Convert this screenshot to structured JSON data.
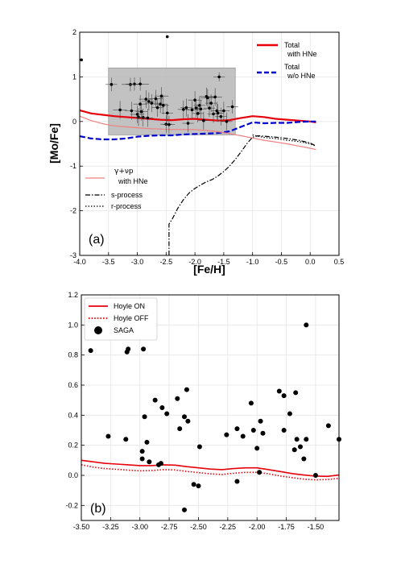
{
  "chart_data": [
    {
      "type": "line",
      "panel_label": "(a)",
      "xlabel": "[Fe/H]",
      "ylabel": "[Mo/Fe]",
      "xlim": [
        -4.0,
        0.5
      ],
      "ylim": [
        -3,
        2
      ],
      "xticks": [
        "-4.0",
        "-3.5",
        "-3.0",
        "-2.5",
        "-2.0",
        "-1.5",
        "-1.0",
        "-0.5",
        "0.0",
        "0.5"
      ],
      "xtick_values": [
        -4.0,
        -3.5,
        -3.0,
        -2.5,
        -2.0,
        -1.5,
        -1.0,
        -0.5,
        0.0,
        0.5
      ],
      "yticks": [
        "-3",
        "-2",
        "-1",
        "0",
        "1",
        "2"
      ],
      "ytick_values": [
        -3,
        -2,
        -1,
        0,
        1,
        2
      ],
      "grid": true,
      "shaded_region": {
        "x": [
          -3.5,
          -1.3
        ],
        "y": [
          -0.3,
          1.2
        ],
        "color": "#bbbbbb"
      },
      "legend_top_right": [
        {
          "label_line1": "Total",
          "label_line2": "with HNe",
          "color": "#e8000b",
          "style": "solid"
        },
        {
          "label_line1": "Total",
          "label_line2": "w/o HNe",
          "color": "#0000cc",
          "style": "dashed"
        }
      ],
      "legend_left": [
        {
          "label_line1": "γ+νp",
          "label_line2": "with HNe",
          "color": "#f08080",
          "style": "solid"
        },
        {
          "label_line1": "s-process",
          "label_line2": "",
          "color": "#000000",
          "style": "dashdot"
        },
        {
          "label_line1": "r-process",
          "label_line2": "",
          "color": "#000000",
          "style": "dotted"
        }
      ],
      "series": [
        {
          "key": "total_hne",
          "color": "#e8000b",
          "style": "solid",
          "width": 2.2,
          "x": [
            -4.0,
            -3.8,
            -3.6,
            -3.4,
            -3.2,
            -3.0,
            -2.8,
            -2.6,
            -2.4,
            -2.2,
            -2.0,
            -1.8,
            -1.6,
            -1.4,
            -1.2,
            -1.0,
            -0.8,
            -0.6,
            -0.4,
            -0.2,
            0.0,
            0.1
          ],
          "y": [
            0.25,
            0.18,
            0.15,
            0.12,
            0.1,
            0.08,
            0.06,
            0.04,
            0.03,
            0.05,
            0.06,
            0.04,
            0.02,
            0.03,
            0.08,
            0.12,
            0.1,
            0.06,
            0.04,
            0.02,
            0.0,
            -0.02
          ]
        },
        {
          "key": "total_nohne",
          "color": "#0000cc",
          "style": "dashed",
          "width": 2.2,
          "x": [
            -4.0,
            -3.8,
            -3.6,
            -3.4,
            -3.2,
            -3.0,
            -2.8,
            -2.6,
            -2.4,
            -2.2,
            -2.0,
            -1.8,
            -1.6,
            -1.4,
            -1.2,
            -1.0,
            -0.8,
            -0.6,
            -0.4,
            -0.2,
            0.0,
            0.1
          ],
          "y": [
            -0.33,
            -0.38,
            -0.4,
            -0.4,
            -0.38,
            -0.34,
            -0.32,
            -0.31,
            -0.31,
            -0.29,
            -0.28,
            -0.27,
            -0.26,
            -0.22,
            -0.12,
            -0.02,
            -0.04,
            -0.03,
            -0.03,
            -0.01,
            0.0,
            0.0
          ]
        },
        {
          "key": "gamma_nup",
          "color": "#f08080",
          "style": "solid",
          "width": 1.2,
          "x": [
            -4.0,
            -3.8,
            -3.6,
            -3.4,
            -3.2,
            -3.0,
            -2.8,
            -2.6,
            -2.4,
            -2.2,
            -2.0,
            -1.8,
            -1.6,
            -1.4,
            -1.2,
            -1.0,
            -0.8,
            -0.6,
            -0.4,
            -0.2,
            0.0,
            0.1
          ],
          "y": [
            0.12,
            0.02,
            -0.05,
            -0.1,
            -0.12,
            -0.14,
            -0.16,
            -0.17,
            -0.18,
            -0.18,
            -0.18,
            -0.2,
            -0.23,
            -0.27,
            -0.32,
            -0.37,
            -0.42,
            -0.46,
            -0.5,
            -0.55,
            -0.6,
            -0.63
          ]
        },
        {
          "key": "s_process",
          "color": "#000000",
          "style": "dashdot",
          "width": 1.2,
          "x": [
            -2.45,
            -2.45,
            -2.4,
            -2.3,
            -2.2,
            -2.1,
            -2.0,
            -1.9,
            -1.8,
            -1.7,
            -1.6,
            -1.5,
            -1.4,
            -1.3,
            -1.2,
            -1.1,
            -1.0,
            -0.9,
            -0.8,
            -0.6,
            -0.4,
            -0.2,
            0.0,
            0.1
          ],
          "y": [
            -3.0,
            -2.3,
            -2.2,
            -1.95,
            -1.75,
            -1.6,
            -1.5,
            -1.42,
            -1.35,
            -1.3,
            -1.22,
            -1.12,
            -1.0,
            -0.85,
            -0.68,
            -0.5,
            -0.35,
            -0.32,
            -0.33,
            -0.35,
            -0.38,
            -0.42,
            -0.48,
            -0.55
          ]
        },
        {
          "key": "r_process",
          "color": "#000000",
          "style": "dotted",
          "width": 1.2,
          "x": [
            -1.0,
            -0.9,
            -0.8,
            -0.6,
            -0.4,
            -0.2,
            0.0,
            0.1
          ],
          "y": [
            -0.3,
            -0.33,
            -0.36,
            -0.38,
            -0.42,
            -0.45,
            -0.5,
            -0.55
          ]
        }
      ],
      "points": [
        {
          "x": -3.97,
          "y": 1.38,
          "xe": 0,
          "ye": 0
        },
        {
          "x": -2.48,
          "y": 1.9,
          "xe": 0,
          "ye": 0
        },
        {
          "x": -3.45,
          "y": 0.83,
          "xe": 0.1,
          "ye": 0.15
        },
        {
          "x": -3.12,
          "y": 0.83,
          "xe": 0.15,
          "ye": 0.15
        },
        {
          "x": -3.05,
          "y": 0.84,
          "xe": 0.15,
          "ye": 0.15
        },
        {
          "x": -2.95,
          "y": 0.84,
          "xe": 0.15,
          "ye": 0.15
        },
        {
          "x": -3.3,
          "y": 0.26,
          "xe": 0.12,
          "ye": 0.2
        },
        {
          "x": -3.1,
          "y": 0.24,
          "xe": 0.12,
          "ye": 0.2
        },
        {
          "x": -3.0,
          "y": 0.16,
          "xe": 0.12,
          "ye": 0.2
        },
        {
          "x": -2.98,
          "y": 0.1,
          "xe": 0.1,
          "ye": 0.2
        },
        {
          "x": -2.95,
          "y": 0.39,
          "xe": 0.12,
          "ye": 0.2
        },
        {
          "x": -2.93,
          "y": 0.22,
          "xe": 0.1,
          "ye": 0.2
        },
        {
          "x": -2.9,
          "y": 0.09,
          "xe": 0.1,
          "ye": 0.2
        },
        {
          "x": -2.85,
          "y": 0.5,
          "xe": 0.12,
          "ye": 0.2
        },
        {
          "x": -2.82,
          "y": 0.08,
          "xe": 0.1,
          "ye": 0.2
        },
        {
          "x": -2.8,
          "y": 0.45,
          "xe": 0.12,
          "ye": 0.2
        },
        {
          "x": -2.75,
          "y": 0.41,
          "xe": 0.12,
          "ye": 0.2
        },
        {
          "x": -2.68,
          "y": 0.51,
          "xe": 0.12,
          "ye": 0.2
        },
        {
          "x": -2.65,
          "y": 0.31,
          "xe": 0.1,
          "ye": 0.2
        },
        {
          "x": -2.6,
          "y": 0.39,
          "xe": 0.12,
          "ye": 0.2
        },
        {
          "x": -2.58,
          "y": 0.57,
          "xe": 0.12,
          "ye": 0.2
        },
        {
          "x": -2.55,
          "y": 0.36,
          "xe": 0.1,
          "ye": 0.2
        },
        {
          "x": -2.5,
          "y": -0.06,
          "xe": 0.1,
          "ye": 0.2
        },
        {
          "x": -2.48,
          "y": 0.19,
          "xe": 0.1,
          "ye": 0.2
        },
        {
          "x": -2.45,
          "y": -0.07,
          "xe": 0.1,
          "ye": 0.2
        },
        {
          "x": -2.2,
          "y": 0.27,
          "xe": 0.1,
          "ye": 0.2
        },
        {
          "x": -2.15,
          "y": 0.31,
          "xe": 0.1,
          "ye": 0.2
        },
        {
          "x": -2.12,
          "y": -0.04,
          "xe": 0.1,
          "ye": 0.2
        },
        {
          "x": -2.05,
          "y": 0.26,
          "xe": 0.1,
          "ye": 0.2
        },
        {
          "x": -2.0,
          "y": 0.48,
          "xe": 0.12,
          "ye": 0.2
        },
        {
          "x": -1.98,
          "y": 0.3,
          "xe": 0.1,
          "ye": 0.2
        },
        {
          "x": -1.95,
          "y": 0.18,
          "xe": 0.1,
          "ye": 0.2
        },
        {
          "x": -1.92,
          "y": 0.36,
          "xe": 0.1,
          "ye": 0.2
        },
        {
          "x": -1.9,
          "y": 0.28,
          "xe": 0.1,
          "ye": 0.2
        },
        {
          "x": -1.85,
          "y": 0.02,
          "xe": 0.1,
          "ye": 0.2
        },
        {
          "x": -1.8,
          "y": 0.56,
          "xe": 0.12,
          "ye": 0.2
        },
        {
          "x": -1.78,
          "y": 0.53,
          "xe": 0.12,
          "ye": 0.2
        },
        {
          "x": -1.75,
          "y": 0.3,
          "xe": 0.1,
          "ye": 0.2
        },
        {
          "x": -1.72,
          "y": 0.41,
          "xe": 0.1,
          "ye": 0.2
        },
        {
          "x": -1.68,
          "y": 0.17,
          "xe": 0.1,
          "ye": 0.2
        },
        {
          "x": -1.65,
          "y": 0.55,
          "xe": 0.12,
          "ye": 0.2
        },
        {
          "x": -1.62,
          "y": 0.24,
          "xe": 0.1,
          "ye": 0.2
        },
        {
          "x": -1.6,
          "y": 0.19,
          "xe": 0.1,
          "ye": 0.2
        },
        {
          "x": -1.58,
          "y": 1.0,
          "xe": 0.1,
          "ye": 0.1
        },
        {
          "x": -1.55,
          "y": 0.11,
          "xe": 0.1,
          "ye": 0.2
        },
        {
          "x": -1.5,
          "y": 0.24,
          "xe": 0.1,
          "ye": 0.2
        },
        {
          "x": -1.45,
          "y": 0.0,
          "xe": 0.1,
          "ye": 0.2
        },
        {
          "x": -1.35,
          "y": 0.33,
          "xe": 0.1,
          "ye": 0.15
        }
      ]
    },
    {
      "type": "scatter",
      "panel_label": "(b)",
      "xlabel": "",
      "ylabel": "",
      "xlim": [
        -3.5,
        -1.3
      ],
      "ylim": [
        -0.3,
        1.2
      ],
      "xticks": [
        "-3.50",
        "-3.25",
        "-3.00",
        "-2.75",
        "-2.50",
        "-2.25",
        "-2.00",
        "-1.75",
        "-1.50"
      ],
      "xtick_values": [
        -3.5,
        -3.25,
        -3.0,
        -2.75,
        -2.5,
        -2.25,
        -2.0,
        -1.75,
        -1.5
      ],
      "yticks": [
        "-0.2",
        "0.0",
        "0.2",
        "0.4",
        "0.6",
        "0.8",
        "1.0",
        "1.2"
      ],
      "ytick_values": [
        -0.2,
        0.0,
        0.2,
        0.4,
        0.6,
        0.8,
        1.0,
        1.2
      ],
      "grid": true,
      "legend_placement": "top-left",
      "legend": [
        {
          "label": "Hoyle ON",
          "color": "#e8000b",
          "style": "solid"
        },
        {
          "label": "Hoyle OFF",
          "color": "#e8000b",
          "style": "dotted"
        },
        {
          "label": "SAGA",
          "color": "#000000",
          "style": "marker"
        }
      ],
      "series": [
        {
          "key": "hoyle_on",
          "color": "#e8000b",
          "style": "solid",
          "width": 1.6,
          "x": [
            -3.5,
            -3.4,
            -3.3,
            -3.2,
            -3.1,
            -3.0,
            -2.9,
            -2.8,
            -2.7,
            -2.6,
            -2.5,
            -2.4,
            -2.3,
            -2.2,
            -2.1,
            -2.0,
            -1.9,
            -1.8,
            -1.7,
            -1.6,
            -1.5,
            -1.4,
            -1.3
          ],
          "y": [
            0.1,
            0.09,
            0.08,
            0.075,
            0.07,
            0.065,
            0.065,
            0.07,
            0.068,
            0.058,
            0.05,
            0.042,
            0.038,
            0.045,
            0.05,
            0.05,
            0.038,
            0.025,
            0.012,
            0.002,
            -0.005,
            -0.007,
            0.002
          ]
        },
        {
          "key": "hoyle_off",
          "color": "#e8000b",
          "style": "dotted",
          "width": 1.6,
          "x": [
            -3.5,
            -3.4,
            -3.3,
            -3.2,
            -3.1,
            -3.0,
            -2.9,
            -2.8,
            -2.7,
            -2.6,
            -2.5,
            -2.4,
            -2.3,
            -2.2,
            -2.1,
            -2.0,
            -1.9,
            -1.8,
            -1.7,
            -1.6,
            -1.5,
            -1.4,
            -1.3
          ],
          "y": [
            0.07,
            0.055,
            0.045,
            0.04,
            0.035,
            0.03,
            0.032,
            0.038,
            0.036,
            0.026,
            0.018,
            0.01,
            0.006,
            0.014,
            0.02,
            0.02,
            0.01,
            -0.005,
            -0.015,
            -0.025,
            -0.03,
            -0.028,
            -0.02
          ]
        }
      ],
      "points": [
        {
          "x": -3.42,
          "y": 0.83
        },
        {
          "x": -3.11,
          "y": 0.82
        },
        {
          "x": -3.1,
          "y": 0.84
        },
        {
          "x": -2.97,
          "y": 0.84
        },
        {
          "x": -3.27,
          "y": 0.26
        },
        {
          "x": -3.12,
          "y": 0.24
        },
        {
          "x": -2.98,
          "y": 0.16
        },
        {
          "x": -2.98,
          "y": 0.11
        },
        {
          "x": -2.96,
          "y": 0.39
        },
        {
          "x": -2.94,
          "y": 0.22
        },
        {
          "x": -2.92,
          "y": 0.09
        },
        {
          "x": -2.87,
          "y": 0.5
        },
        {
          "x": -2.84,
          "y": 0.07
        },
        {
          "x": -2.82,
          "y": 0.08
        },
        {
          "x": -2.81,
          "y": 0.45
        },
        {
          "x": -2.77,
          "y": 0.41
        },
        {
          "x": -2.68,
          "y": 0.51
        },
        {
          "x": -2.66,
          "y": 0.31
        },
        {
          "x": -2.62,
          "y": 0.39
        },
        {
          "x": -2.6,
          "y": 0.57
        },
        {
          "x": -2.59,
          "y": 0.36
        },
        {
          "x": -2.62,
          "y": -0.23
        },
        {
          "x": -2.54,
          "y": -0.06
        },
        {
          "x": -2.5,
          "y": -0.07
        },
        {
          "x": -2.49,
          "y": 0.19
        },
        {
          "x": -2.26,
          "y": 0.27
        },
        {
          "x": -2.17,
          "y": 0.31
        },
        {
          "x": -2.17,
          "y": -0.04
        },
        {
          "x": -2.12,
          "y": 0.26
        },
        {
          "x": -2.05,
          "y": 0.48
        },
        {
          "x": -2.03,
          "y": 0.3
        },
        {
          "x": -2.0,
          "y": 0.18
        },
        {
          "x": -1.98,
          "y": 0.02
        },
        {
          "x": -1.97,
          "y": 0.36
        },
        {
          "x": -1.95,
          "y": 0.28
        },
        {
          "x": -1.81,
          "y": 0.56
        },
        {
          "x": -1.77,
          "y": 0.53
        },
        {
          "x": -1.77,
          "y": 0.3
        },
        {
          "x": -1.72,
          "y": 0.41
        },
        {
          "x": -1.68,
          "y": 0.17
        },
        {
          "x": -1.67,
          "y": 0.55
        },
        {
          "x": -1.66,
          "y": 0.24
        },
        {
          "x": -1.63,
          "y": 0.19
        },
        {
          "x": -1.58,
          "y": 1.0
        },
        {
          "x": -1.6,
          "y": 0.11
        },
        {
          "x": -1.58,
          "y": 0.24
        },
        {
          "x": -1.5,
          "y": 0.0
        },
        {
          "x": -1.39,
          "y": 0.33
        },
        {
          "x": -1.3,
          "y": 0.24
        }
      ]
    }
  ]
}
